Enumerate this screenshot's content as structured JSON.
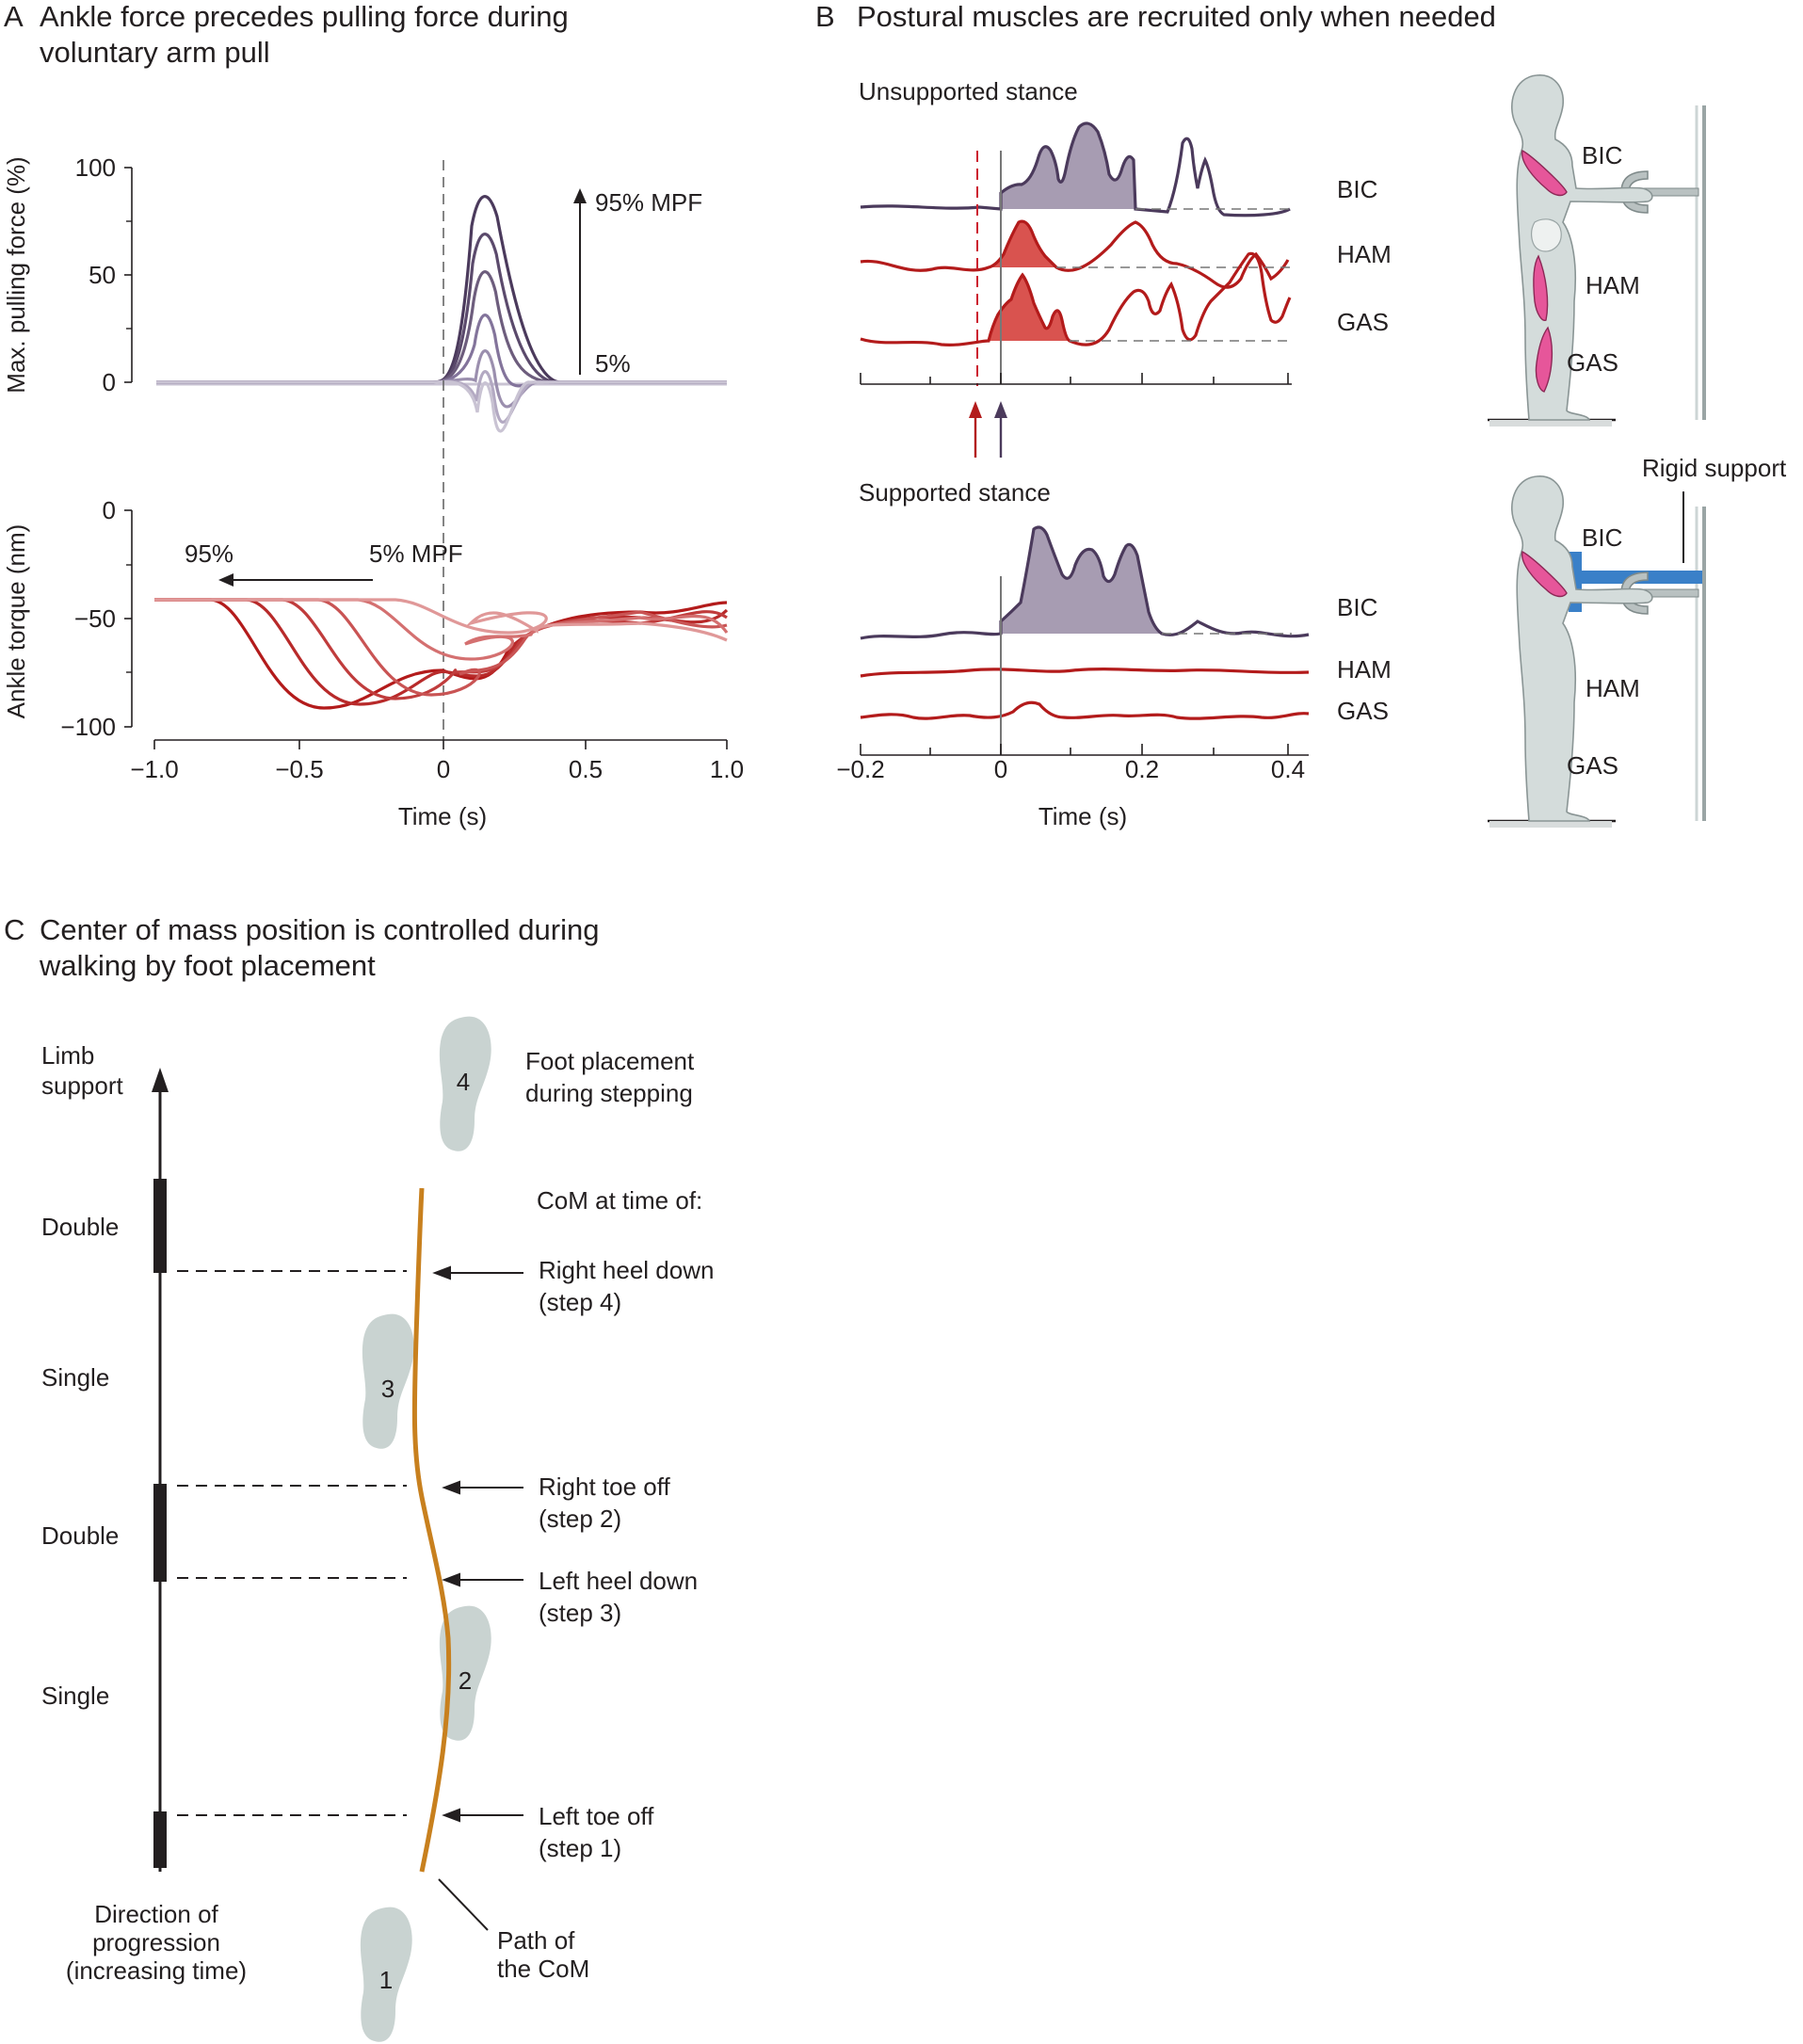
{
  "panelA": {
    "letter": "A",
    "title_l1": "Ankle force precedes pulling force during",
    "title_l2": "voluntary arm pull",
    "top_ylabel": "Max. pulling force (%)",
    "top_yticks": [
      "100",
      "50",
      "0"
    ],
    "top_arrow_top_label": "95% MPF",
    "top_arrow_bottom_label": "5%",
    "bottom_ylabel": "Ankle torque (nm)",
    "bottom_yticks": [
      "0",
      "−50",
      "−100"
    ],
    "bottom_arrow_left_label": "95%",
    "bottom_arrow_right_label": "5% MPF",
    "xticks": [
      "−1.0",
      "−0.5",
      "0",
      "0.5",
      "1.0"
    ],
    "xlabel": "Time (s)"
  },
  "panelB": {
    "letter": "B",
    "title": "Postural muscles are recruited only when needed",
    "unsupported_label": "Unsupported stance",
    "supported_label": "Supported stance",
    "trace_labels": [
      "BIC",
      "HAM",
      "GAS"
    ],
    "xticks": [
      "−0.2",
      "0",
      "0.2",
      "0.4"
    ],
    "xlabel": "Time (s)",
    "figure_labels": [
      "BIC",
      "HAM",
      "GAS"
    ],
    "rigid_support_label": "Rigid support",
    "colors": {
      "postural": "#b31b1b",
      "bic": "#4b3a5c",
      "support": "#3a80c8"
    }
  },
  "panelC": {
    "letter": "C",
    "title_l1": "Center of mass position is controlled during",
    "title_l2": "walking by foot placement",
    "axis_label_l1": "Limb",
    "axis_label_l2": "support",
    "phases": [
      "Double",
      "Single",
      "Double",
      "Single"
    ],
    "direction_l1": "Direction of",
    "direction_l2": "progression",
    "direction_l3": "(increasing time)",
    "feet": [
      "1",
      "2",
      "3",
      "4"
    ],
    "foot_placement_l1": "Foot placement",
    "foot_placement_l2": "during stepping",
    "com_header": "CoM at time of:",
    "events": [
      {
        "l1": "Right heel down",
        "l2": "(step 4)"
      },
      {
        "l1": "Right toe off",
        "l2": "(step 2)"
      },
      {
        "l1": "Left heel down",
        "l2": "(step 3)"
      },
      {
        "l1": "Left toe off",
        "l2": "(step 1)"
      }
    ],
    "path_l1": "Path of",
    "path_l2": "the CoM",
    "colors": {
      "com_path": "#c8801e",
      "foot": "#c9d3d1"
    }
  }
}
